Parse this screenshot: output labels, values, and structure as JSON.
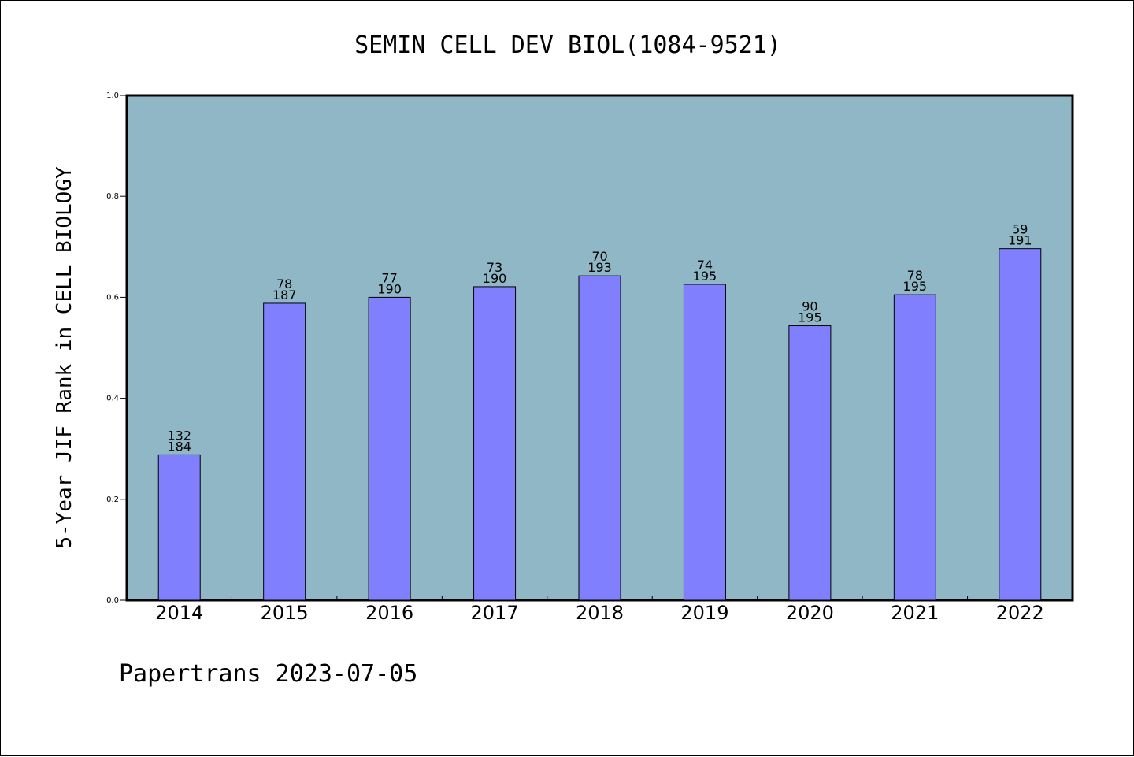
{
  "chart_data": {
    "type": "bar",
    "title": "SEMIN CELL DEV BIOL(1084-9521)",
    "ylabel": "5-Year JIF Rank in CELL BIOLOGY",
    "xlabel": "",
    "ylim": [
      0,
      1.0
    ],
    "yticks": [
      "0.0",
      "0.2",
      "0.4",
      "0.6",
      "0.8",
      "1.0"
    ],
    "grid": false,
    "categories": [
      "2014",
      "2015",
      "2016",
      "2017",
      "2018",
      "2019",
      "2020",
      "2021",
      "2022"
    ],
    "values": [
      0.288,
      0.5882,
      0.6,
      0.621,
      0.6425,
      0.6256,
      0.5436,
      0.6051,
      0.6963
    ],
    "rank": [
      "132",
      "78",
      "77",
      "73",
      "70",
      "74",
      "90",
      "78",
      "59"
    ],
    "total": [
      "184",
      "187",
      "190",
      "190",
      "193",
      "195",
      "195",
      "195",
      "191"
    ],
    "colors": {
      "plot_bg": "#8fb7c6",
      "bar": "#8080ff",
      "edge": "#000000"
    }
  },
  "footer": "Papertrans 2023-07-05"
}
